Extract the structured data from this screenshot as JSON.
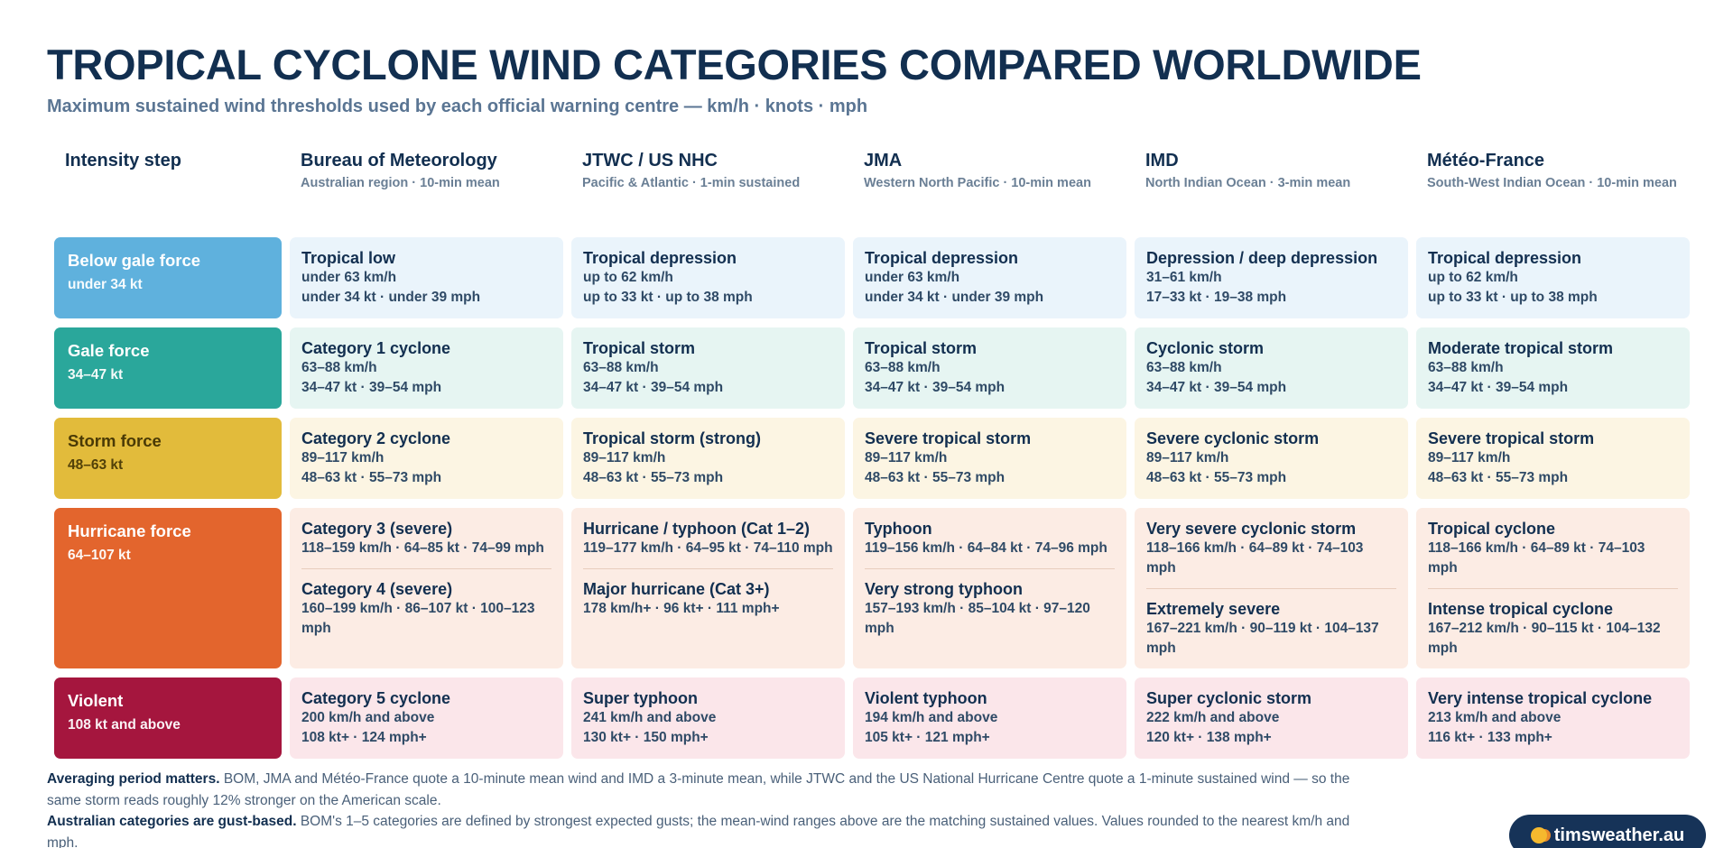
{
  "title": "TROPICAL CYCLONE WIND CATEGORIES COMPARED WORLDWIDE",
  "subtitle": "Maximum sustained wind thresholds used by each official warning centre — km/h · knots · mph",
  "intensity_header": "Intensity step",
  "agencies": [
    {
      "name": "Bureau of Meteorology",
      "sub": "Australian region · 10-min mean"
    },
    {
      "name": "JTWC / US NHC",
      "sub": "Pacific & Atlantic · 1-min sustained"
    },
    {
      "name": "JMA",
      "sub": "Western North Pacific · 10-min mean"
    },
    {
      "name": "IMD",
      "sub": "North Indian Ocean · 3-min mean"
    },
    {
      "name": "Météo-France",
      "sub": "South-West Indian Ocean · 10-min mean"
    }
  ],
  "steps": [
    {
      "name": "Below gale force",
      "range": "under 34 kt",
      "color": "#5fb1dd",
      "text_color": "#ffffff",
      "cell_bg": "#eaf4fb",
      "cells": [
        [
          {
            "name": "Tropical low",
            "l1": "under 63 km/h",
            "l2": "under 34 kt · under 39 mph"
          }
        ],
        [
          {
            "name": "Tropical depression",
            "l1": "up to 62 km/h",
            "l2": "up to 33 kt · up to 38 mph"
          }
        ],
        [
          {
            "name": "Tropical depression",
            "l1": "under 63 km/h",
            "l2": "under 34 kt · under 39 mph"
          }
        ],
        [
          {
            "name": "Depression / deep depression",
            "l1": "31–61 km/h",
            "l2": "17–33 kt · 19–38 mph"
          }
        ],
        [
          {
            "name": "Tropical depression",
            "l1": "up to 62 km/h",
            "l2": "up to 33 kt · up to 38 mph"
          }
        ]
      ]
    },
    {
      "name": "Gale force",
      "range": "34–47 kt",
      "color": "#2aa79b",
      "text_color": "#ffffff",
      "cell_bg": "#e6f5f2",
      "cells": [
        [
          {
            "name": "Category 1 cyclone",
            "l1": "63–88 km/h",
            "l2": "34–47 kt · 39–54 mph"
          }
        ],
        [
          {
            "name": "Tropical storm",
            "l1": "63–88 km/h",
            "l2": "34–47 kt · 39–54 mph"
          }
        ],
        [
          {
            "name": "Tropical storm",
            "l1": "63–88 km/h",
            "l2": "34–47 kt · 39–54 mph"
          }
        ],
        [
          {
            "name": "Cyclonic storm",
            "l1": "63–88 km/h",
            "l2": "34–47 kt · 39–54 mph"
          }
        ],
        [
          {
            "name": "Moderate tropical storm",
            "l1": "63–88 km/h",
            "l2": "34–47 kt · 39–54 mph"
          }
        ]
      ]
    },
    {
      "name": "Storm force",
      "range": "48–63 kt",
      "color": "#e2bb3b",
      "text_color": "#4a3a06",
      "cell_bg": "#fcf5e3",
      "cells": [
        [
          {
            "name": "Category 2 cyclone",
            "l1": "89–117 km/h",
            "l2": "48–63 kt · 55–73 mph"
          }
        ],
        [
          {
            "name": "Tropical storm (strong)",
            "l1": "89–117 km/h",
            "l2": "48–63 kt · 55–73 mph"
          }
        ],
        [
          {
            "name": "Severe tropical storm",
            "l1": "89–117 km/h",
            "l2": "48–63 kt · 55–73 mph"
          }
        ],
        [
          {
            "name": "Severe cyclonic storm",
            "l1": "89–117 km/h",
            "l2": "48–63 kt · 55–73 mph"
          }
        ],
        [
          {
            "name": "Severe tropical storm",
            "l1": "89–117 km/h",
            "l2": "48–63 kt · 55–73 mph"
          }
        ]
      ]
    },
    {
      "name": "Hurricane force",
      "range": "64–107 kt",
      "color": "#e3652d",
      "text_color": "#ffffff",
      "cell_bg": "#fcece4",
      "cells": [
        [
          {
            "name": "Category 3 (severe)",
            "l1": "118–159 km/h · 64–85 kt · 74–99 mph"
          },
          {
            "name": "Category 4 (severe)",
            "l1": "160–199 km/h · 86–107 kt · 100–123 mph"
          }
        ],
        [
          {
            "name": "Hurricane / typhoon (Cat 1–2)",
            "l1": "119–177 km/h · 64–95 kt · 74–110 mph"
          },
          {
            "name": "Major hurricane (Cat 3+)",
            "l1": "178 km/h+ · 96 kt+ · 111 mph+"
          }
        ],
        [
          {
            "name": "Typhoon",
            "l1": "119–156 km/h · 64–84 kt · 74–96 mph"
          },
          {
            "name": "Very strong typhoon",
            "l1": "157–193 km/h · 85–104 kt · 97–120 mph"
          }
        ],
        [
          {
            "name": "Very severe cyclonic storm",
            "l1": "118–166 km/h · 64–89 kt · 74–103 mph"
          },
          {
            "name": "Extremely severe",
            "l1": "167–221 km/h · 90–119 kt · 104–137 mph"
          }
        ],
        [
          {
            "name": "Tropical cyclone",
            "l1": "118–166 km/h · 64–89 kt · 74–103 mph"
          },
          {
            "name": "Intense tropical cyclone",
            "l1": "167–212 km/h · 90–115 kt · 104–132 mph"
          }
        ]
      ]
    },
    {
      "name": "Violent",
      "range": "108 kt and above",
      "color": "#a5163e",
      "text_color": "#ffffff",
      "cell_bg": "#fbe6ea",
      "cells": [
        [
          {
            "name": "Category 5 cyclone",
            "l1": "200 km/h and above",
            "l2": "108 kt+ · 124 mph+"
          }
        ],
        [
          {
            "name": "Super typhoon",
            "l1": "241 km/h and above",
            "l2": "130 kt+ · 150 mph+"
          }
        ],
        [
          {
            "name": "Violent typhoon",
            "l1": "194 km/h and above",
            "l2": "105 kt+ · 121 mph+"
          }
        ],
        [
          {
            "name": "Super cyclonic storm",
            "l1": "222 km/h and above",
            "l2": "120 kt+ · 138 mph+"
          }
        ],
        [
          {
            "name": "Very intense tropical cyclone",
            "l1": "213 km/h and above",
            "l2": "116 kt+ · 133 mph+"
          }
        ]
      ]
    }
  ],
  "footnotes": [
    {
      "bold": "Averaging period matters.",
      "text": " BOM, JMA and Météo-France quote a 10-minute mean wind and IMD a 3-minute mean, while JTWC and the US National Hurricane Centre quote a 1-minute sustained wind — so the same storm reads roughly 12% stronger on the American scale."
    },
    {
      "bold": "Australian categories are gust-based.",
      "text": " BOM's 1–5 categories are defined by strongest expected gusts; the mean-wind ranges above are the matching sustained values. Values rounded to the nearest km/h and mph."
    }
  ],
  "brand": "timsweather.au",
  "colors": {
    "title": "#122f50",
    "subtitle": "#5a7593",
    "brand_bg": "#163358",
    "brand_dot": "#f5b92e"
  }
}
